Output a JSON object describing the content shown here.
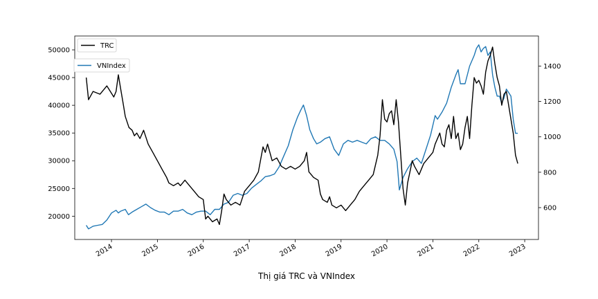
{
  "chart_data": {
    "type": "line",
    "title": "",
    "caption": "Thị giá TRC và VNIndex",
    "xlabel": "",
    "ylabel": "",
    "x_range": [
      2013.2,
      2023.3
    ],
    "x_ticks": [
      "2014",
      "2015",
      "2016",
      "2017",
      "2018",
      "2019",
      "2020",
      "2021",
      "2022",
      "2023"
    ],
    "y_left": {
      "range": [
        15800,
        52500
      ],
      "ticks": [
        20000,
        25000,
        30000,
        35000,
        40000,
        45000,
        50000
      ]
    },
    "y_right": {
      "range": [
        420,
        1570
      ],
      "ticks": [
        600,
        800,
        1000,
        1200,
        1400
      ]
    },
    "legend_placement": "upper-left",
    "grid": false,
    "series": [
      {
        "name": "TRC",
        "axis": "left",
        "color": "#000000",
        "x": [
          2013.45,
          2013.5,
          2013.6,
          2013.75,
          2013.9,
          2014.05,
          2014.1,
          2014.15,
          2014.2,
          2014.25,
          2014.3,
          2014.38,
          2014.45,
          2014.5,
          2014.55,
          2014.62,
          2014.7,
          2014.8,
          2014.9,
          2015.0,
          2015.1,
          2015.2,
          2015.25,
          2015.35,
          2015.45,
          2015.5,
          2015.6,
          2015.7,
          2015.8,
          2015.9,
          2016.0,
          2016.05,
          2016.1,
          2016.2,
          2016.3,
          2016.35,
          2016.4,
          2016.45,
          2016.5,
          2016.6,
          2016.7,
          2016.8,
          2016.9,
          2017.0,
          2017.1,
          2017.2,
          2017.3,
          2017.35,
          2017.4,
          2017.5,
          2017.6,
          2017.7,
          2017.8,
          2017.9,
          2018.0,
          2018.1,
          2018.2,
          2018.25,
          2018.3,
          2018.4,
          2018.5,
          2018.55,
          2018.6,
          2018.7,
          2018.75,
          2018.8,
          2018.9,
          2019.0,
          2019.1,
          2019.2,
          2019.3,
          2019.4,
          2019.5,
          2019.6,
          2019.7,
          2019.8,
          2019.85,
          2019.9,
          2019.95,
          2020.0,
          2020.05,
          2020.1,
          2020.15,
          2020.2,
          2020.25,
          2020.3,
          2020.35,
          2020.4,
          2020.45,
          2020.5,
          2020.55,
          2020.6,
          2020.7,
          2020.8,
          2020.9,
          2021.0,
          2021.05,
          2021.1,
          2021.15,
          2021.2,
          2021.25,
          2021.3,
          2021.35,
          2021.4,
          2021.45,
          2021.5,
          2021.55,
          2021.6,
          2021.65,
          2021.7,
          2021.75,
          2021.8,
          2021.85,
          2021.9,
          2021.95,
          2022.0,
          2022.05,
          2022.1,
          2022.15,
          2022.2,
          2022.25,
          2022.3,
          2022.35,
          2022.4,
          2022.45,
          2022.5,
          2022.55,
          2022.6,
          2022.65,
          2022.7,
          2022.75,
          2022.8,
          2022.85
        ],
        "values": [
          45000,
          41000,
          42500,
          42000,
          43500,
          41500,
          42500,
          45500,
          43000,
          40500,
          38000,
          36000,
          35500,
          34500,
          35000,
          34000,
          35500,
          33000,
          31500,
          30000,
          28500,
          27000,
          26000,
          25500,
          26000,
          25500,
          26500,
          25500,
          24500,
          23500,
          23000,
          19500,
          20000,
          19000,
          19500,
          18500,
          21000,
          24000,
          23000,
          22000,
          22500,
          22000,
          24500,
          25500,
          26500,
          28000,
          32500,
          31500,
          33000,
          30000,
          30500,
          29000,
          28500,
          29000,
          28500,
          29000,
          30000,
          31500,
          28000,
          27000,
          26500,
          24000,
          23000,
          22500,
          23500,
          22000,
          21500,
          22000,
          21000,
          22000,
          23000,
          24500,
          25500,
          26500,
          27500,
          31000,
          34500,
          41000,
          37500,
          37000,
          38500,
          39000,
          36500,
          41000,
          37000,
          31000,
          25000,
          22000,
          26000,
          28000,
          30000,
          29000,
          27500,
          29500,
          30500,
          31500,
          33000,
          34000,
          35000,
          33000,
          32500,
          35500,
          36500,
          34000,
          38000,
          34000,
          35000,
          32000,
          33000,
          36000,
          38000,
          34000,
          40000,
          45000,
          44000,
          44500,
          43500,
          42000,
          46000,
          48000,
          49000,
          50500,
          47500,
          45000,
          43500,
          40000,
          42000,
          42500,
          40000,
          37500,
          35000,
          31000,
          29500
        ]
      },
      {
        "name": "VNIndex",
        "axis": "right",
        "color": "#1f77b4",
        "x": [
          2013.45,
          2013.5,
          2013.6,
          2013.7,
          2013.8,
          2013.9,
          2014.0,
          2014.1,
          2014.15,
          2014.2,
          2014.3,
          2014.37,
          2014.45,
          2014.55,
          2014.65,
          2014.75,
          2014.85,
          2014.95,
          2015.05,
          2015.15,
          2015.25,
          2015.35,
          2015.45,
          2015.55,
          2015.65,
          2015.75,
          2015.85,
          2015.95,
          2016.05,
          2016.15,
          2016.25,
          2016.35,
          2016.45,
          2016.55,
          2016.65,
          2016.75,
          2016.85,
          2016.95,
          2017.05,
          2017.15,
          2017.25,
          2017.35,
          2017.45,
          2017.55,
          2017.65,
          2017.75,
          2017.85,
          2017.95,
          2018.05,
          2018.12,
          2018.18,
          2018.25,
          2018.32,
          2018.4,
          2018.47,
          2018.55,
          2018.65,
          2018.75,
          2018.85,
          2018.95,
          2019.05,
          2019.15,
          2019.25,
          2019.35,
          2019.45,
          2019.55,
          2019.65,
          2019.75,
          2019.85,
          2019.95,
          2020.05,
          2020.15,
          2020.22,
          2020.27,
          2020.35,
          2020.45,
          2020.55,
          2020.65,
          2020.75,
          2020.85,
          2020.95,
          2021.05,
          2021.1,
          2021.2,
          2021.3,
          2021.4,
          2021.5,
          2021.55,
          2021.6,
          2021.7,
          2021.8,
          2021.9,
          2021.95,
          2022.0,
          2022.05,
          2022.1,
          2022.15,
          2022.2,
          2022.25,
          2022.3,
          2022.35,
          2022.4,
          2022.45,
          2022.5,
          2022.55,
          2022.6,
          2022.65,
          2022.7,
          2022.75,
          2022.8,
          2022.85
        ],
        "values": [
          500,
          480,
          495,
          500,
          505,
          530,
          570,
          585,
          570,
          580,
          590,
          560,
          575,
          590,
          605,
          620,
          600,
          585,
          575,
          575,
          560,
          580,
          580,
          590,
          570,
          560,
          575,
          580,
          580,
          560,
          590,
          590,
          620,
          630,
          670,
          680,
          670,
          680,
          710,
          730,
          750,
          775,
          780,
          790,
          830,
          890,
          950,
          1040,
          1110,
          1150,
          1180,
          1120,
          1040,
          990,
          960,
          970,
          990,
          1000,
          930,
          895,
          960,
          980,
          970,
          980,
          970,
          960,
          990,
          1000,
          980,
          980,
          960,
          930,
          860,
          700,
          770,
          820,
          860,
          880,
          850,
          930,
          1010,
          1120,
          1100,
          1140,
          1190,
          1280,
          1350,
          1380,
          1300,
          1300,
          1400,
          1460,
          1500,
          1520,
          1480,
          1500,
          1510,
          1460,
          1480,
          1350,
          1280,
          1230,
          1230,
          1190,
          1220,
          1270,
          1250,
          1230,
          1100,
          1020,
          1020
        ]
      }
    ]
  }
}
